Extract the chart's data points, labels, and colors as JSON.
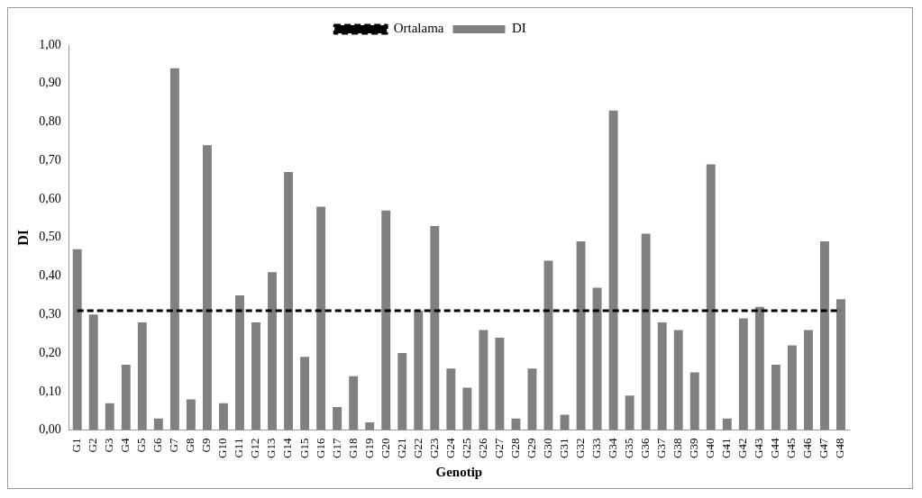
{
  "chart_data": {
    "type": "bar",
    "xlabel": "Genotip",
    "ylabel": "DI",
    "categories": [
      "G1",
      "G2",
      "G3",
      "G4",
      "G5",
      "G6",
      "G7",
      "G8",
      "G9",
      "G10",
      "G11",
      "G12",
      "G13",
      "G14",
      "G15",
      "G16",
      "G17",
      "G18",
      "G19",
      "G20",
      "G21",
      "G22",
      "G23",
      "G24",
      "G25",
      "G26",
      "G27",
      "G28",
      "G29",
      "G30",
      "G31",
      "G32",
      "G33",
      "G34",
      "G35",
      "G36",
      "G37",
      "G38",
      "G39",
      "G40",
      "G41",
      "G42",
      "G43",
      "G44",
      "G45",
      "G46",
      "G47",
      "G48"
    ],
    "series": [
      {
        "name": "DI",
        "color": "#808080",
        "values": [
          0.47,
          0.3,
          0.07,
          0.17,
          0.28,
          0.03,
          0.94,
          0.08,
          0.74,
          0.07,
          0.35,
          0.28,
          0.41,
          0.67,
          0.19,
          0.58,
          0.06,
          0.14,
          0.02,
          0.57,
          0.2,
          0.31,
          0.53,
          0.16,
          0.11,
          0.26,
          0.24,
          0.03,
          0.16,
          0.44,
          0.04,
          0.49,
          0.37,
          0.83,
          0.09,
          0.51,
          0.28,
          0.26,
          0.15,
          0.69,
          0.03,
          0.29,
          0.32,
          0.17,
          0.22,
          0.26,
          0.49,
          0.34
        ]
      },
      {
        "name": "Ortalama",
        "type": "line",
        "color": "#000000",
        "line_style": "dashed",
        "values": [
          0.31,
          0.31,
          0.31,
          0.31,
          0.31,
          0.31,
          0.31,
          0.31,
          0.31,
          0.31,
          0.31,
          0.31,
          0.31,
          0.31,
          0.31,
          0.31,
          0.31,
          0.31,
          0.31,
          0.31,
          0.31,
          0.31,
          0.31,
          0.31,
          0.31,
          0.31,
          0.31,
          0.31,
          0.31,
          0.31,
          0.31,
          0.31,
          0.31,
          0.31,
          0.31,
          0.31,
          0.31,
          0.31,
          0.31,
          0.31,
          0.31,
          0.31,
          0.31,
          0.31,
          0.31,
          0.31,
          0.31,
          0.31
        ]
      }
    ],
    "ylim": [
      0,
      1
    ],
    "yticks": [
      {
        "value": 0,
        "label": "0,00"
      },
      {
        "value": 0.1,
        "label": "0,10"
      },
      {
        "value": 0.2,
        "label": "0,20"
      },
      {
        "value": 0.3,
        "label": "0,30"
      },
      {
        "value": 0.4,
        "label": "0,40"
      },
      {
        "value": 0.5,
        "label": "0,50"
      },
      {
        "value": 0.6,
        "label": "0,60"
      },
      {
        "value": 0.7,
        "label": "0,70"
      },
      {
        "value": 0.8,
        "label": "0,80"
      },
      {
        "value": 0.9,
        "label": "0,90"
      },
      {
        "value": 1,
        "label": "1,00"
      }
    ],
    "grid": false,
    "legend": "top"
  }
}
